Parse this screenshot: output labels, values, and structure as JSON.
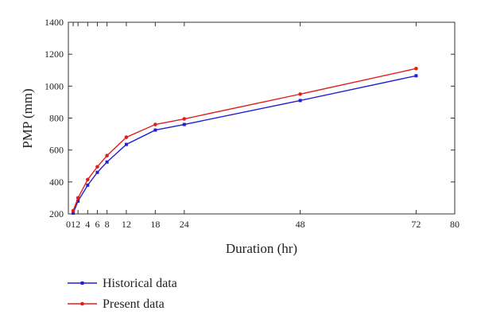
{
  "chart_data": {
    "type": "line",
    "title": "",
    "xlabel": "Duration (hr)",
    "ylabel": "PMP (mm)",
    "xlim": [
      0,
      80
    ],
    "ylim": [
      200,
      1400
    ],
    "xticks": [
      0,
      1,
      2,
      4,
      6,
      8,
      12,
      18,
      24,
      48,
      72,
      80
    ],
    "xtick_labels": [
      "0",
      "1",
      "2",
      "4",
      "6",
      "8",
      "12",
      "18",
      "24",
      "48",
      "72",
      "80"
    ],
    "yticks": [
      200,
      400,
      600,
      800,
      1000,
      1200,
      1400
    ],
    "ytick_labels": [
      "200",
      "400",
      "600",
      "800",
      "1000",
      "1200",
      "1400"
    ],
    "grid": false,
    "legend_position": "bottom-left",
    "series": [
      {
        "name": "Historical data",
        "color": "#1f1fd6",
        "marker": "square",
        "x": [
          1,
          2,
          4,
          6,
          8,
          12,
          18,
          24,
          48,
          72
        ],
        "y": [
          205,
          280,
          380,
          460,
          525,
          635,
          725,
          760,
          910,
          1065
        ]
      },
      {
        "name": "Present data",
        "color": "#e01e1e",
        "marker": "circle",
        "x": [
          1,
          2,
          4,
          6,
          8,
          12,
          18,
          24,
          48,
          72
        ],
        "y": [
          220,
          300,
          415,
          495,
          565,
          680,
          760,
          795,
          950,
          1110
        ]
      }
    ]
  }
}
